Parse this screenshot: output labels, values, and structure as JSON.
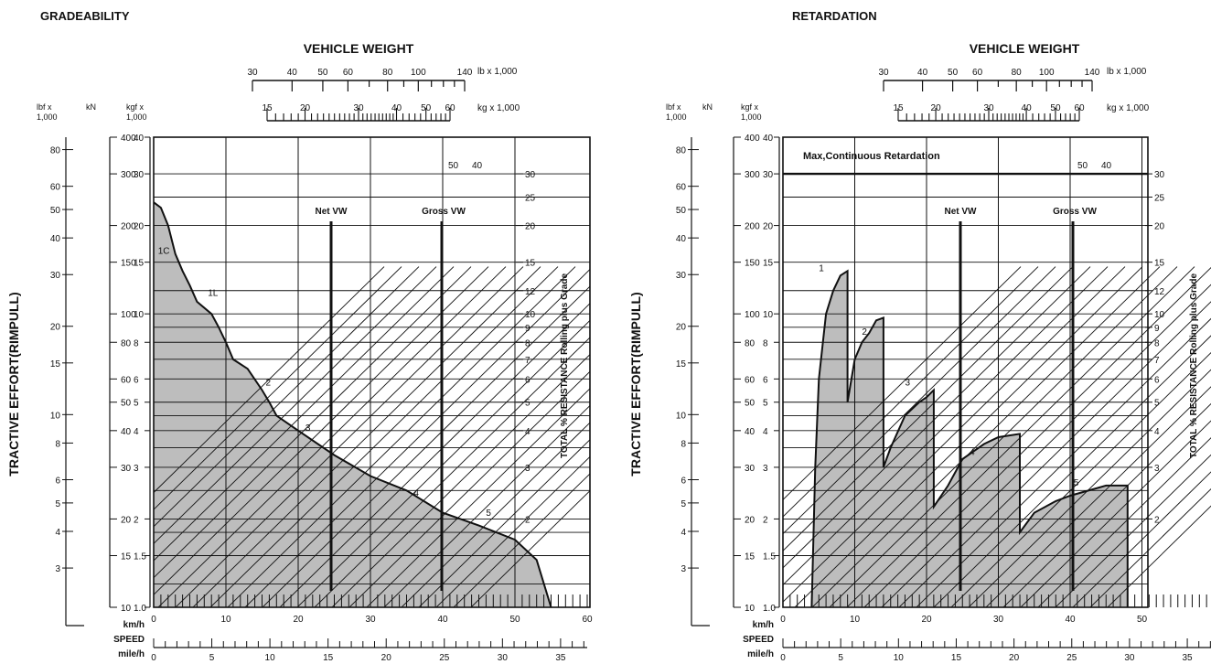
{
  "colors": {
    "shade": "#bdbdbd",
    "ink": "#111111",
    "paper": "#ffffff"
  },
  "chart_data": [
    {
      "type": "area",
      "title": "GRADEABILITY",
      "weight_title": "VEHICLE WEIGHT",
      "weight_scale_lb": {
        "ticks": [
          "30",
          "40",
          "50",
          "60",
          "80",
          "100",
          "140"
        ],
        "unit": "lb x 1,000"
      },
      "weight_scale_kg": {
        "ticks": [
          "15",
          "20",
          "30",
          "40",
          "50",
          "60"
        ],
        "unit": "kg x 1,000"
      },
      "y_units": {
        "lbf": "lbf x\n1,000",
        "kn": "kN",
        "kgf": "kgf x\n1,000"
      },
      "y_ticks_kgf": [
        "40",
        "30",
        "20",
        "15",
        "10",
        "8",
        "6",
        "5",
        "4",
        "3",
        "2",
        "1.5",
        "1.0"
      ],
      "y_ticks_kn": [
        "400",
        "300",
        "200",
        "150",
        "100",
        "80",
        "60",
        "50",
        "40",
        "30",
        "20",
        "15",
        "10"
      ],
      "y_ticks_lbf": [
        "80",
        "60",
        "50",
        "40",
        "30",
        "20",
        "15",
        "10",
        "8",
        "6",
        "5",
        "4",
        "3"
      ],
      "ylabel": "TRACTIVE EFFORT(RIMPULL)",
      "right_label": "TOTAL % RESISTANCE Rolling plus Grade",
      "right_ticks": [
        "30",
        "25",
        "20",
        "15",
        "12",
        "10",
        "9",
        "8",
        "7",
        "6",
        "5",
        "4",
        "3",
        "2"
      ],
      "diag_top_labels": [
        "50",
        "40"
      ],
      "net_label": "Net VW",
      "gross_label": "Gross VW",
      "x_kmh_unit": "km/h",
      "x_kmh_ticks": [
        "0",
        "10",
        "20",
        "30",
        "40",
        "50",
        "60"
      ],
      "speed_label": "SPEED",
      "x_mph_unit": "mile/h",
      "x_mph_ticks": [
        "0",
        "5",
        "10",
        "15",
        "20",
        "25",
        "30",
        "35"
      ],
      "gear_labels": [
        "1C",
        "1L",
        "2",
        "3",
        "4",
        "5"
      ],
      "curve": [
        [
          0,
          24
        ],
        [
          1,
          23
        ],
        [
          2,
          20
        ],
        [
          3,
          16
        ],
        [
          4,
          14
        ],
        [
          5,
          12.5
        ],
        [
          6,
          11
        ],
        [
          8,
          10
        ],
        [
          9,
          9
        ],
        [
          10,
          8
        ],
        [
          11,
          7
        ],
        [
          13,
          6.5
        ],
        [
          15,
          5.5
        ],
        [
          16,
          5
        ],
        [
          17,
          4.5
        ],
        [
          20,
          4
        ],
        [
          25,
          3.3
        ],
        [
          30,
          2.8
        ],
        [
          35,
          2.5
        ],
        [
          40,
          2.1
        ],
        [
          45,
          1.9
        ],
        [
          50,
          1.7
        ],
        [
          53,
          1.45
        ],
        [
          55,
          1.0
        ]
      ]
    },
    {
      "type": "area",
      "title": "RETARDATION",
      "weight_title": "VEHICLE WEIGHT",
      "weight_scale_lb": {
        "ticks": [
          "30",
          "40",
          "50",
          "60",
          "80",
          "100",
          "140"
        ],
        "unit": "lb x 1,000"
      },
      "weight_scale_kg": {
        "ticks": [
          "15",
          "20",
          "30",
          "40",
          "50",
          "60"
        ],
        "unit": "kg x 1,000"
      },
      "y_units": {
        "lbf": "lbf x\n1,000",
        "kn": "kN",
        "kgf": "kgf x\n1,000"
      },
      "y_ticks_kgf": [
        "40",
        "30",
        "20",
        "15",
        "10",
        "8",
        "6",
        "5",
        "4",
        "3",
        "2",
        "1.5",
        "1.0"
      ],
      "y_ticks_kn": [
        "400",
        "300",
        "200",
        "150",
        "100",
        "80",
        "60",
        "50",
        "40",
        "30",
        "20",
        "15",
        "10"
      ],
      "y_ticks_lbf": [
        "80",
        "60",
        "50",
        "40",
        "30",
        "20",
        "15",
        "10",
        "8",
        "6",
        "5",
        "4",
        "3"
      ],
      "ylabel": "TRACTIVE EFFORT(RIMPULL)",
      "right_label": "TOTAL % RESISTANCE Rolling plus Grade",
      "right_ticks": [
        "30",
        "25",
        "20",
        "15",
        "12",
        "10",
        "9",
        "8",
        "7",
        "6",
        "5",
        "4",
        "3",
        "2"
      ],
      "diag_top_labels": [
        "50",
        "40"
      ],
      "max_label": "Max,Continuous Retardation",
      "net_label": "Net VW",
      "gross_label": "Gross VW",
      "x_kmh_unit": "km/h",
      "x_kmh_ticks": [
        "0",
        "10",
        "20",
        "30",
        "40",
        "50"
      ],
      "speed_label": "SPEED",
      "x_mph_unit": "mile/h",
      "x_mph_ticks": [
        "0",
        "5",
        "10",
        "15",
        "20",
        "25",
        "30",
        "35"
      ],
      "gear_labels": [
        "1",
        "2",
        "3",
        "4",
        "5"
      ],
      "curve": [
        [
          4,
          1.0
        ],
        [
          4.5,
          3
        ],
        [
          5,
          6
        ],
        [
          6,
          10
        ],
        [
          7,
          12
        ],
        [
          8,
          13.5
        ],
        [
          9,
          14
        ],
        [
          9,
          5
        ],
        [
          10,
          7
        ],
        [
          11,
          8
        ],
        [
          12,
          8.6
        ],
        [
          13,
          9.5
        ],
        [
          14,
          9.7
        ],
        [
          14,
          3
        ],
        [
          15,
          3.5
        ],
        [
          17,
          4.5
        ],
        [
          19,
          5.0
        ],
        [
          20,
          5.2
        ],
        [
          21,
          5.5
        ],
        [
          21,
          2.2
        ],
        [
          23,
          2.6
        ],
        [
          25,
          3.2
        ],
        [
          28,
          3.6
        ],
        [
          30,
          3.8
        ],
        [
          33,
          3.9
        ],
        [
          33,
          1.8
        ],
        [
          35,
          2.1
        ],
        [
          38,
          2.3
        ],
        [
          40,
          2.4
        ],
        [
          45,
          2.6
        ],
        [
          48,
          2.6
        ],
        [
          48,
          1.0
        ]
      ]
    }
  ]
}
